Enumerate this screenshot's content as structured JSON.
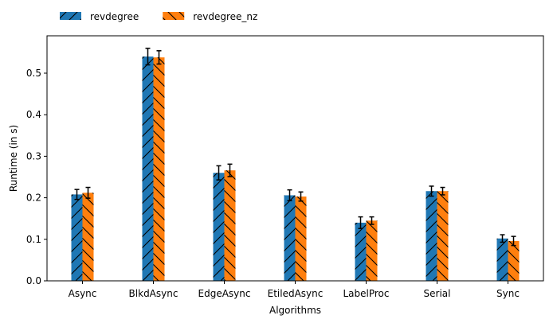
{
  "chart_data": {
    "type": "bar",
    "categories": [
      "Async",
      "BlkdAsync",
      "EdgeAsync",
      "EtiledAsync",
      "LabelProc",
      "Serial",
      "Sync"
    ],
    "series": [
      {
        "name": "revdegree",
        "values": [
          0.208,
          0.54,
          0.26,
          0.206,
          0.14,
          0.216,
          0.102
        ],
        "errors": [
          0.012,
          0.02,
          0.017,
          0.013,
          0.014,
          0.012,
          0.009
        ],
        "color": "#1f77b4",
        "hatch": "forward-slash"
      },
      {
        "name": "revdegree_nz",
        "values": [
          0.212,
          0.538,
          0.266,
          0.203,
          0.145,
          0.216,
          0.096
        ],
        "errors": [
          0.013,
          0.016,
          0.015,
          0.011,
          0.009,
          0.009,
          0.011
        ],
        "color": "#ff7f0e",
        "hatch": "back-slash"
      }
    ],
    "xlabel": "Algorithms",
    "ylabel": "Runtime (in s)",
    "ylim": [
      0,
      0.59
    ],
    "yticks": [
      0.0,
      0.1,
      0.2,
      0.3,
      0.4,
      0.5
    ],
    "ytick_labels": [
      "0.0",
      "0.1",
      "0.2",
      "0.3",
      "0.4",
      "0.5"
    ],
    "grid": false,
    "legend_position": "top-left, above plot",
    "error_bar_color": "#000000"
  }
}
